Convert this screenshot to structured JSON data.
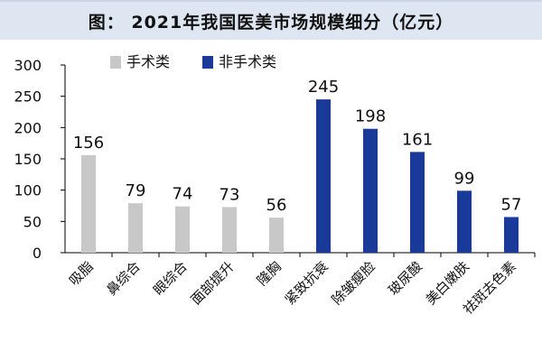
{
  "title": "图： 2021年我国医美市场规模细分（亿元）",
  "colors": {
    "surgical": "#c8c8c8",
    "non_surgical": "#1a3a9a"
  },
  "chart_data": {
    "type": "bar",
    "title": "图： 2021年我国医美市场规模细分（亿元）",
    "categories": [
      "吸脂",
      "鼻综合",
      "眼综合",
      "面部提升",
      "隆胸",
      "紧致抗衰",
      "除皱瘦脸",
      "玻尿酸",
      "美白嫩肤",
      "祛斑去色素"
    ],
    "values": [
      156,
      79,
      74,
      73,
      56,
      245,
      198,
      161,
      99,
      57
    ],
    "groups": [
      "手术类",
      "手术类",
      "手术类",
      "手术类",
      "手术类",
      "非手术类",
      "非手术类",
      "非手术类",
      "非手术类",
      "非手术类"
    ],
    "series": [
      {
        "name": "手术类"
      },
      {
        "name": "非手术类"
      }
    ],
    "yticks": [
      "0",
      "50",
      "100",
      "150",
      "200",
      "250",
      "300"
    ],
    "ylim": [
      0,
      300
    ],
    "xlabel": "",
    "ylabel": "",
    "legend": "top-left",
    "grid": false
  }
}
